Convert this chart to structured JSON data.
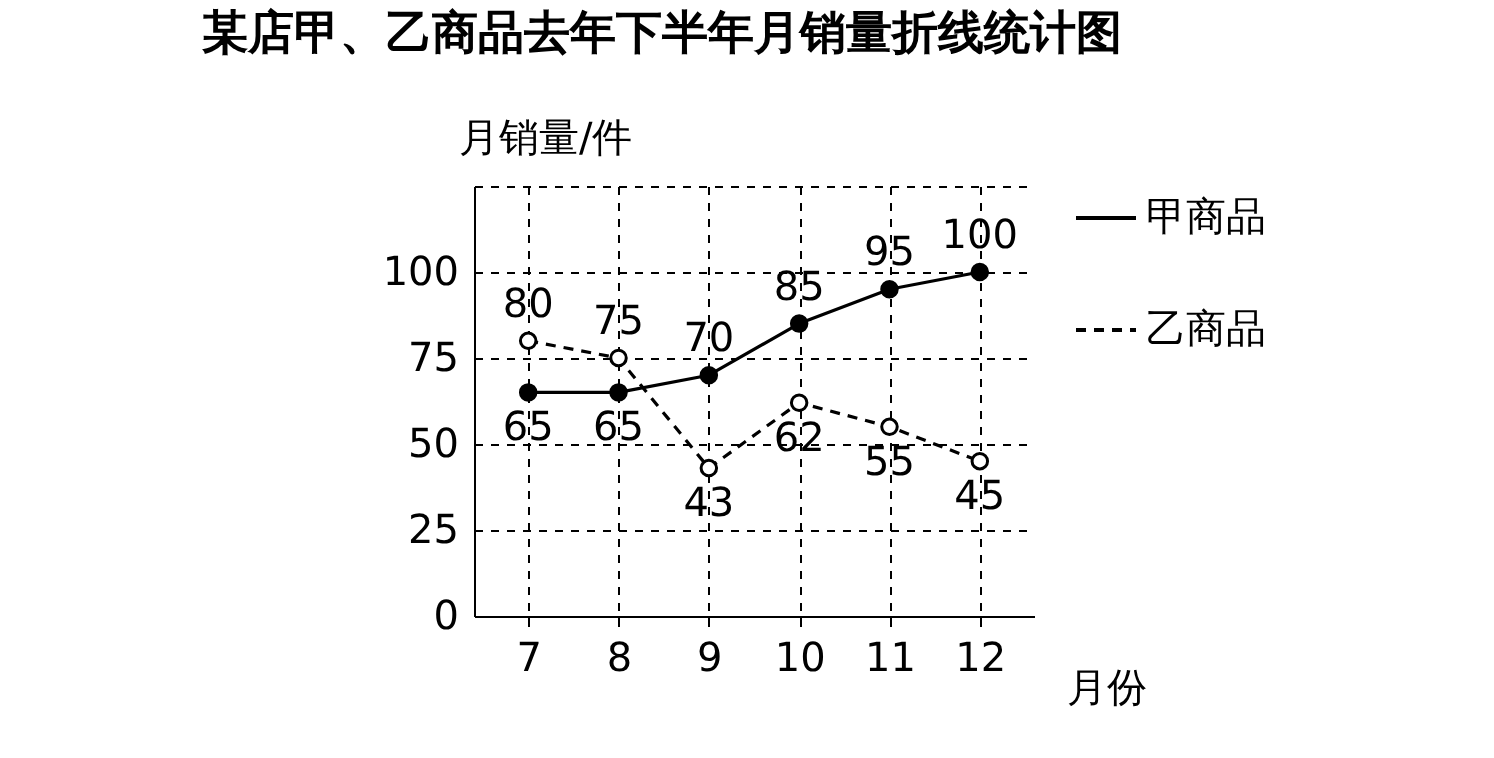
{
  "chart_data": {
    "type": "line",
    "title": "某店甲、乙商品去年下半年月销量折线统计图",
    "xlabel": "月份",
    "ylabel": "月销量/件",
    "categories": [
      "7",
      "8",
      "9",
      "10",
      "11",
      "12"
    ],
    "series": [
      {
        "name": "甲商品",
        "color": "#000000",
        "line_style": "solid",
        "values": [
          65,
          65,
          70,
          85,
          95,
          100
        ]
      },
      {
        "name": "乙商品",
        "color": "#000000",
        "line_style": "dashed",
        "values": [
          80,
          75,
          43,
          62,
          55,
          45
        ]
      }
    ],
    "ylim": [
      0,
      125
    ],
    "yticks": [
      0,
      25,
      50,
      75,
      100,
      {
        "value": 125,
        "label": null
      }
    ],
    "grid": true,
    "legend": "right",
    "marker": "circle",
    "data_labels": true
  }
}
